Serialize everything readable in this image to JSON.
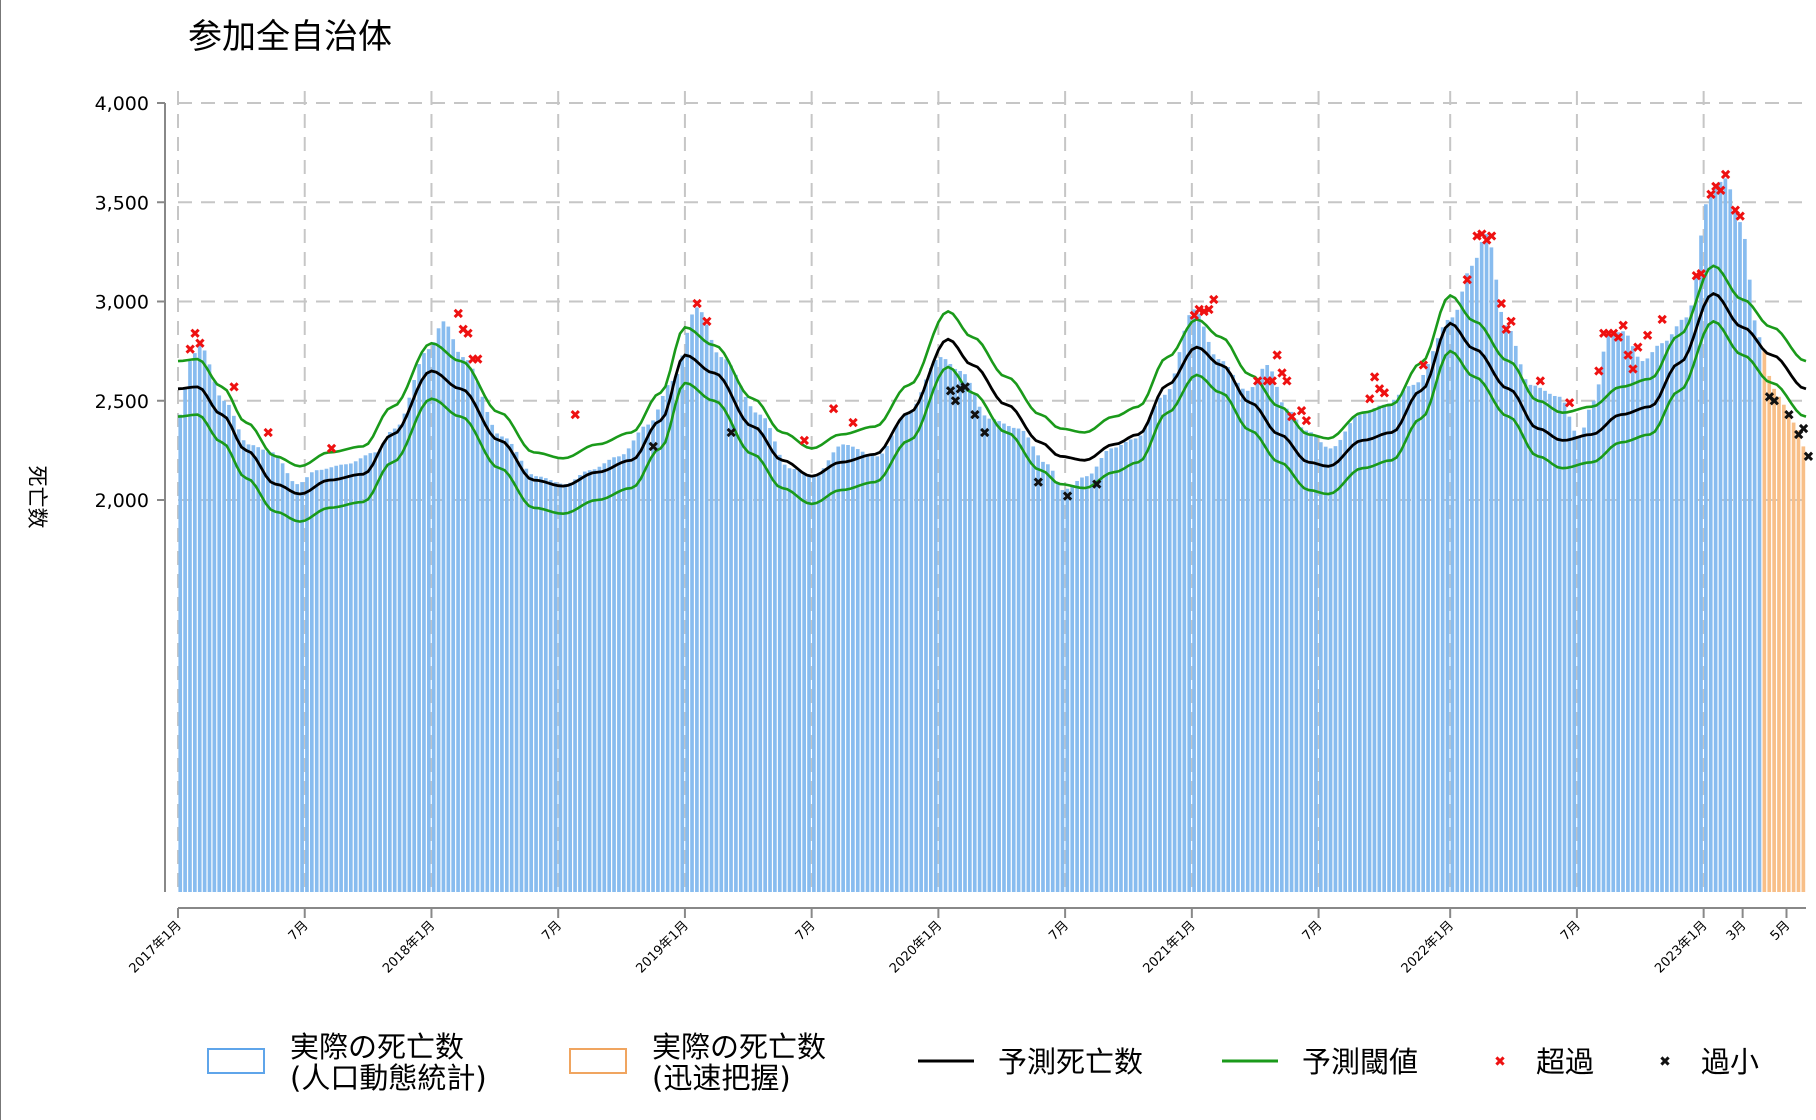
{
  "chart_data": {
    "type": "bar",
    "title": "参加全自治体",
    "ylabel": "死亡数",
    "xlabel": "",
    "ylim": [
      0,
      4000
    ],
    "y_ticks": [
      {
        "value": 2000,
        "label": "2,000"
      },
      {
        "value": 2500,
        "label": "2,500"
      },
      {
        "value": 3000,
        "label": "3,000"
      },
      {
        "value": 3500,
        "label": "3,500"
      },
      {
        "value": 4000,
        "label": "4,000"
      }
    ],
    "x_ticks": [
      {
        "week": 0,
        "label": "2017年1月"
      },
      {
        "week": 26,
        "label": "7月"
      },
      {
        "week": 52,
        "label": "2018年1月"
      },
      {
        "week": 78,
        "label": "7月"
      },
      {
        "week": 104,
        "label": "2019年1月"
      },
      {
        "week": 130,
        "label": "7月"
      },
      {
        "week": 156,
        "label": "2020年1月"
      },
      {
        "week": 182,
        "label": "7月"
      },
      {
        "week": 208,
        "label": "2021年1月"
      },
      {
        "week": 234,
        "label": "7月"
      },
      {
        "week": 261,
        "label": "2022年1月"
      },
      {
        "week": 287,
        "label": "7月"
      },
      {
        "week": 313,
        "label": "2023年1月"
      },
      {
        "week": 321,
        "label": "3月"
      },
      {
        "week": 330,
        "label": "5月"
      }
    ],
    "total_weeks": 334,
    "rapid_start_week": 325,
    "colors": {
      "actual": "#88bcef",
      "rapid": "#f8bf88",
      "predicted": "#000000",
      "threshold": "#1a9a1a",
      "excess": "#ee1111",
      "deficit": "#111111",
      "grid": "#c6c6c6"
    },
    "predicted_anchors": [
      [
        0,
        2560
      ],
      [
        4,
        2570
      ],
      [
        9,
        2430
      ],
      [
        14,
        2250
      ],
      [
        20,
        2080
      ],
      [
        25,
        2030
      ],
      [
        31,
        2100
      ],
      [
        38,
        2130
      ],
      [
        44,
        2330
      ],
      [
        52,
        2650
      ],
      [
        58,
        2560
      ],
      [
        66,
        2300
      ],
      [
        73,
        2100
      ],
      [
        79,
        2070
      ],
      [
        86,
        2140
      ],
      [
        93,
        2200
      ],
      [
        99,
        2400
      ],
      [
        104,
        2730
      ],
      [
        110,
        2640
      ],
      [
        118,
        2370
      ],
      [
        124,
        2200
      ],
      [
        130,
        2120
      ],
      [
        136,
        2190
      ],
      [
        143,
        2230
      ],
      [
        150,
        2440
      ],
      [
        158,
        2810
      ],
      [
        163,
        2680
      ],
      [
        170,
        2480
      ],
      [
        177,
        2290
      ],
      [
        181,
        2220
      ],
      [
        186,
        2200
      ],
      [
        192,
        2280
      ],
      [
        197,
        2330
      ],
      [
        203,
        2580
      ],
      [
        209,
        2770
      ],
      [
        214,
        2680
      ],
      [
        220,
        2490
      ],
      [
        226,
        2330
      ],
      [
        232,
        2190
      ],
      [
        236,
        2170
      ],
      [
        243,
        2300
      ],
      [
        249,
        2340
      ],
      [
        255,
        2550
      ],
      [
        261,
        2890
      ],
      [
        266,
        2760
      ],
      [
        273,
        2560
      ],
      [
        279,
        2360
      ],
      [
        284,
        2300
      ],
      [
        290,
        2330
      ],
      [
        296,
        2430
      ],
      [
        302,
        2470
      ],
      [
        308,
        2690
      ],
      [
        315,
        3040
      ],
      [
        321,
        2870
      ],
      [
        327,
        2730
      ],
      [
        334,
        2560
      ]
    ],
    "actual_anchors": [
      [
        0,
        2430
      ],
      [
        2,
        2700
      ],
      [
        4,
        2780
      ],
      [
        9,
        2500
      ],
      [
        14,
        2280
      ],
      [
        19,
        2240
      ],
      [
        24,
        2080
      ],
      [
        28,
        2150
      ],
      [
        34,
        2180
      ],
      [
        40,
        2240
      ],
      [
        44,
        2360
      ],
      [
        51,
        2760
      ],
      [
        54,
        2900
      ],
      [
        58,
        2720
      ],
      [
        66,
        2320
      ],
      [
        73,
        2120
      ],
      [
        79,
        2080
      ],
      [
        84,
        2150
      ],
      [
        90,
        2220
      ],
      [
        96,
        2380
      ],
      [
        101,
        2600
      ],
      [
        106,
        2970
      ],
      [
        111,
        2720
      ],
      [
        119,
        2430
      ],
      [
        125,
        2160
      ],
      [
        130,
        2120
      ],
      [
        136,
        2280
      ],
      [
        143,
        2220
      ],
      [
        149,
        2430
      ],
      [
        156,
        2720
      ],
      [
        160,
        2650
      ],
      [
        166,
        2410
      ],
      [
        172,
        2360
      ],
      [
        178,
        2180
      ],
      [
        181,
        2050
      ],
      [
        186,
        2120
      ],
      [
        191,
        2260
      ],
      [
        196,
        2310
      ],
      [
        202,
        2530
      ],
      [
        208,
        2960
      ],
      [
        213,
        2710
      ],
      [
        219,
        2550
      ],
      [
        223,
        2680
      ],
      [
        227,
        2460
      ],
      [
        231,
        2350
      ],
      [
        236,
        2260
      ],
      [
        242,
        2430
      ],
      [
        247,
        2480
      ],
      [
        253,
        2580
      ],
      [
        261,
        2920
      ],
      [
        265,
        3180
      ],
      [
        268,
        3340
      ],
      [
        272,
        2880
      ],
      [
        277,
        2580
      ],
      [
        283,
        2520
      ],
      [
        287,
        2320
      ],
      [
        290,
        2500
      ],
      [
        293,
        2830
      ],
      [
        296,
        2850
      ],
      [
        300,
        2700
      ],
      [
        304,
        2790
      ],
      [
        309,
        2920
      ],
      [
        314,
        3550
      ],
      [
        317,
        3620
      ],
      [
        320,
        3400
      ],
      [
        324,
        2820
      ],
      [
        327,
        2560
      ],
      [
        329,
        2480
      ],
      [
        331,
        2390
      ],
      [
        334,
        2230
      ]
    ],
    "excess_points": [
      [
        2,
        2760
      ],
      [
        3,
        2840
      ],
      [
        4,
        2790
      ],
      [
        11,
        2570
      ],
      [
        18,
        2340
      ],
      [
        31,
        2260
      ],
      [
        57,
        2940
      ],
      [
        58,
        2860
      ],
      [
        59,
        2840
      ],
      [
        60,
        2710
      ],
      [
        61,
        2710
      ],
      [
        81,
        2430
      ],
      [
        106,
        2990
      ],
      [
        108,
        2900
      ],
      [
        128,
        2300
      ],
      [
        134,
        2460
      ],
      [
        138,
        2390
      ],
      [
        208,
        2930
      ],
      [
        209,
        2960
      ],
      [
        210,
        2950
      ],
      [
        211,
        2960
      ],
      [
        212,
        3010
      ],
      [
        221,
        2600
      ],
      [
        223,
        2600
      ],
      [
        224,
        2600
      ],
      [
        225,
        2730
      ],
      [
        226,
        2640
      ],
      [
        227,
        2600
      ],
      [
        228,
        2420
      ],
      [
        230,
        2450
      ],
      [
        231,
        2400
      ],
      [
        244,
        2510
      ],
      [
        245,
        2620
      ],
      [
        246,
        2560
      ],
      [
        247,
        2540
      ],
      [
        255,
        2680
      ],
      [
        264,
        3110
      ],
      [
        266,
        3330
      ],
      [
        267,
        3340
      ],
      [
        268,
        3310
      ],
      [
        269,
        3330
      ],
      [
        271,
        2990
      ],
      [
        272,
        2860
      ],
      [
        273,
        2900
      ],
      [
        279,
        2600
      ],
      [
        285,
        2490
      ],
      [
        291,
        2650
      ],
      [
        292,
        2840
      ],
      [
        293,
        2840
      ],
      [
        294,
        2840
      ],
      [
        295,
        2820
      ],
      [
        296,
        2880
      ],
      [
        297,
        2730
      ],
      [
        298,
        2660
      ],
      [
        299,
        2770
      ],
      [
        301,
        2830
      ],
      [
        304,
        2910
      ],
      [
        311,
        3130
      ],
      [
        312,
        3140
      ],
      [
        314,
        3540
      ],
      [
        315,
        3580
      ],
      [
        316,
        3560
      ],
      [
        317,
        3640
      ],
      [
        319,
        3460
      ],
      [
        320,
        3430
      ]
    ],
    "deficit_points": [
      [
        97,
        2270
      ],
      [
        113,
        2340
      ],
      [
        158,
        2550
      ],
      [
        159,
        2500
      ],
      [
        160,
        2560
      ],
      [
        161,
        2570
      ],
      [
        163,
        2430
      ],
      [
        165,
        2340
      ],
      [
        176,
        2090
      ],
      [
        182,
        2020
      ],
      [
        188,
        2080
      ],
      [
        326,
        2520
      ],
      [
        327,
        2500
      ],
      [
        330,
        2430
      ],
      [
        332,
        2330
      ],
      [
        333,
        2360
      ],
      [
        334,
        2220
      ]
    ],
    "legend": [
      {
        "kind": "bar-actual",
        "label": [
          "実際の死亡数",
          "(人口動態統計)"
        ]
      },
      {
        "kind": "bar-rapid",
        "label": [
          "実際の死亡数",
          "(迅速把握)"
        ]
      },
      {
        "kind": "line-predicted",
        "label": [
          "予測死亡数"
        ]
      },
      {
        "kind": "line-threshold",
        "label": [
          "予測閾値"
        ]
      },
      {
        "kind": "marker-excess",
        "label": [
          "超過"
        ]
      },
      {
        "kind": "marker-deficit",
        "label": [
          "過小"
        ]
      }
    ],
    "legend_position": "bottom",
    "grid": true
  }
}
